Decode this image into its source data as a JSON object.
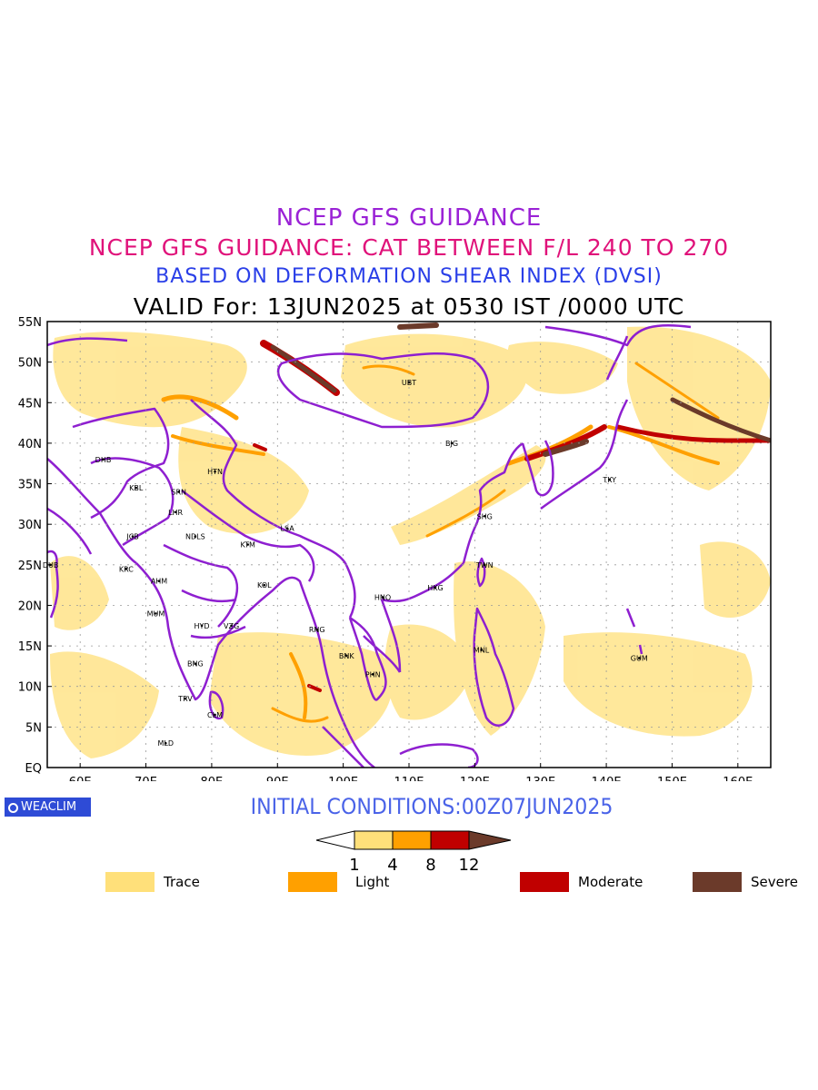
{
  "titles": {
    "line1": "NCEP GFS GUIDANCE",
    "line2": "NCEP GFS GUIDANCE: CAT BETWEEN F/L 240 TO 270",
    "line3": "BASED ON DEFORMATION SHEAR INDEX (DVSI)",
    "line4": "VALID For: 13JUN2025 at 0530 IST /0000 UTC"
  },
  "map": {
    "lon_range": [
      55,
      165
    ],
    "lat_range": [
      0,
      55
    ],
    "lat_labels": [
      "55N",
      "50N",
      "45N",
      "40N",
      "35N",
      "30N",
      "25N",
      "20N",
      "15N",
      "10N",
      "5N",
      "EQ"
    ],
    "lon_labels": [
      "60E",
      "70E",
      "80E",
      "90E",
      "100E",
      "110E",
      "120E",
      "130E",
      "140E",
      "150E",
      "160E"
    ],
    "cities": [
      {
        "code": "UBT",
        "lon": 110,
        "lat": 47.5
      },
      {
        "code": "BJG",
        "lon": 116.5,
        "lat": 40
      },
      {
        "code": "DHB",
        "lon": 63.5,
        "lat": 38
      },
      {
        "code": "HTN",
        "lon": 80.5,
        "lat": 36.5
      },
      {
        "code": "KBL",
        "lon": 68.5,
        "lat": 34.5
      },
      {
        "code": "SRN",
        "lon": 75,
        "lat": 34
      },
      {
        "code": "LHR",
        "lon": 74.5,
        "lat": 31.5
      },
      {
        "code": "LSA",
        "lon": 91.5,
        "lat": 29.5
      },
      {
        "code": "TKY",
        "lon": 140.5,
        "lat": 35.5
      },
      {
        "code": "SHG",
        "lon": 121.5,
        "lat": 31
      },
      {
        "code": "JCB",
        "lon": 68,
        "lat": 28.5
      },
      {
        "code": "NDLS",
        "lon": 77.5,
        "lat": 28.5
      },
      {
        "code": "KTM",
        "lon": 85.5,
        "lat": 27.5
      },
      {
        "code": "DUB",
        "lon": 55.5,
        "lat": 25
      },
      {
        "code": "KRC",
        "lon": 67,
        "lat": 24.5
      },
      {
        "code": "TWN",
        "lon": 121.5,
        "lat": 25
      },
      {
        "code": "AHM",
        "lon": 72,
        "lat": 23
      },
      {
        "code": "KOL",
        "lon": 88,
        "lat": 22.5
      },
      {
        "code": "HKG",
        "lon": 114,
        "lat": 22.2
      },
      {
        "code": "HNO",
        "lon": 106,
        "lat": 21
      },
      {
        "code": "MUM",
        "lon": 71.5,
        "lat": 19
      },
      {
        "code": "HYD",
        "lon": 78.5,
        "lat": 17.5
      },
      {
        "code": "VZG",
        "lon": 83,
        "lat": 17.5
      },
      {
        "code": "RNG",
        "lon": 96,
        "lat": 17
      },
      {
        "code": "MNL",
        "lon": 121,
        "lat": 14.5
      },
      {
        "code": "GUM",
        "lon": 145,
        "lat": 13.5
      },
      {
        "code": "BNK",
        "lon": 100.5,
        "lat": 13.8
      },
      {
        "code": "BNG",
        "lon": 77.5,
        "lat": 12.8
      },
      {
        "code": "PHN",
        "lon": 104.5,
        "lat": 11.5
      },
      {
        "code": "TRV",
        "lon": 76,
        "lat": 8.5
      },
      {
        "code": "CLM",
        "lon": 80.5,
        "lat": 6.5
      },
      {
        "code": "MLD",
        "lon": 73,
        "lat": 3
      }
    ]
  },
  "initial_conditions": "INITIAL CONDITIONS:00Z07JUN2025",
  "logo": {
    "text": "WEACLIM"
  },
  "colorbar": {
    "ticks": [
      "1",
      "4",
      "8",
      "12"
    ],
    "colors": [
      "#ffffff",
      "#ffe07a",
      "#ffa000",
      "#c00000",
      "#6b3a2a"
    ]
  },
  "legend": {
    "items": [
      {
        "label": "Trace",
        "color": "#ffe07a"
      },
      {
        "label": "Light",
        "color": "#ffa000"
      },
      {
        "label": "Moderate",
        "color": "#c00000"
      },
      {
        "label": "Severe",
        "color": "#6b3a2a"
      }
    ]
  },
  "colors": {
    "boundaries": "#8e1fd0",
    "trace": "#ffe07a",
    "light": "#ffa000",
    "moderate": "#c00000",
    "severe": "#6b3a2a"
  }
}
